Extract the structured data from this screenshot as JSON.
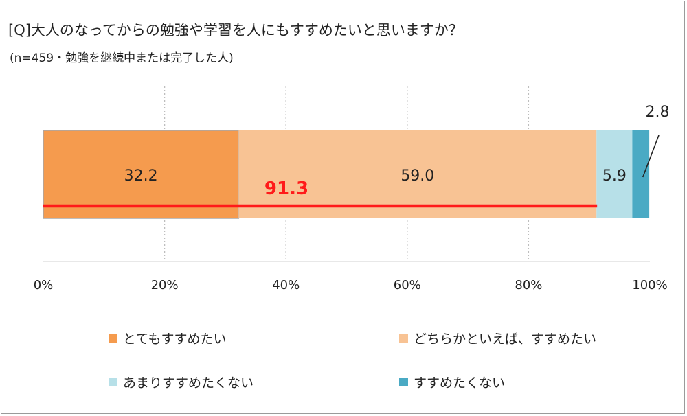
{
  "title": "[Q]大人のなってからの勉強や学習を人にもすすめたいと思いますか？",
  "subtitle": "(n=459・勉強を継続中または完了した人)",
  "chart_data": {
    "type": "bar",
    "orientation": "horizontal",
    "stacked": true,
    "x_ticks": [
      "0%",
      "20%",
      "40%",
      "60%",
      "80%",
      "100%"
    ],
    "xlim": [
      0,
      100
    ],
    "grid": true,
    "legend_placement": "bottom",
    "series": [
      {
        "name": "とてもすすめたい",
        "value": 32.2,
        "label": "32.2",
        "color": "#f59b4e"
      },
      {
        "name": "どちらかといえば、すすめたい",
        "value": 59.0,
        "label": "59.0",
        "color": "#f8c394"
      },
      {
        "name": "あまりすすめたくない",
        "value": 5.9,
        "label": "5.9",
        "color": "#b7e0e8"
      },
      {
        "name": "すすめたくない",
        "value": 2.8,
        "label": "2.8",
        "color": "#4aaac4"
      }
    ],
    "annotation": {
      "text": "91.3",
      "from": 0,
      "to": 91.3,
      "color": "#ff1a1a"
    }
  }
}
